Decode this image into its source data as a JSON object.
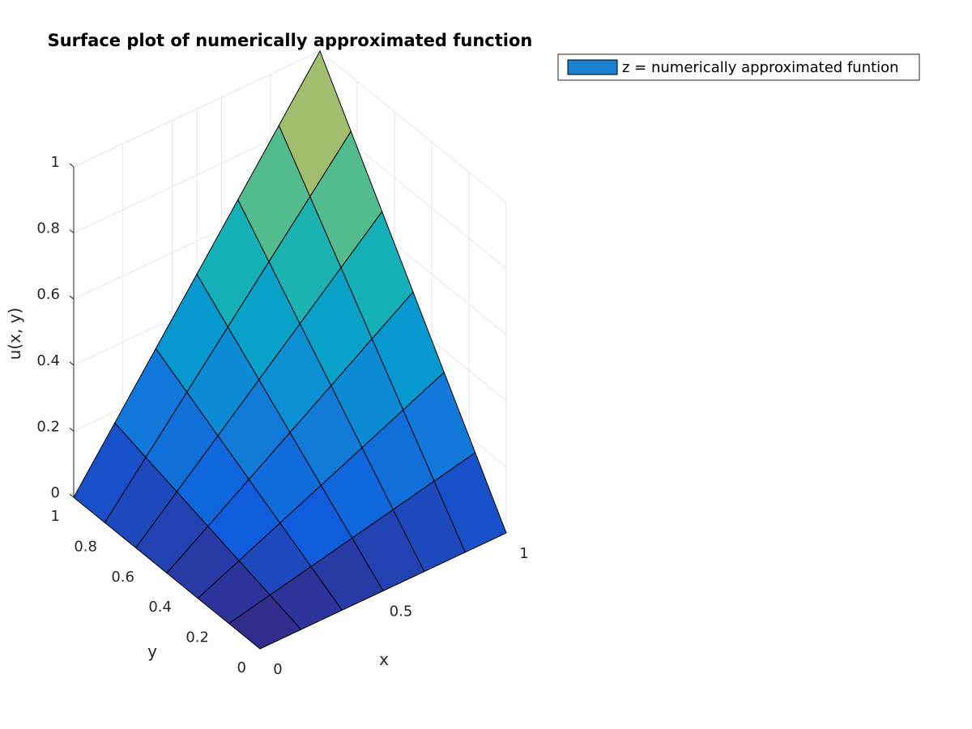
{
  "chart_data": {
    "type": "surface",
    "title": "Surface plot of numerically approximated function",
    "xlabel": "x",
    "ylabel": "y",
    "zlabel": "u(x, y)",
    "x": [
      0,
      0.1667,
      0.3333,
      0.5,
      0.6667,
      0.8333,
      1
    ],
    "y": [
      0,
      0.1667,
      0.3333,
      0.5,
      0.6667,
      0.8333,
      1
    ],
    "z": [
      [
        0,
        0,
        0,
        0,
        0,
        0,
        0
      ],
      [
        0,
        0.0278,
        0.0556,
        0.0833,
        0.1111,
        0.1389,
        0.1667
      ],
      [
        0,
        0.0556,
        0.1111,
        0.1667,
        0.2222,
        0.2778,
        0.3333
      ],
      [
        0,
        0.0833,
        0.1667,
        0.25,
        0.3333,
        0.4167,
        0.5
      ],
      [
        0,
        0.1111,
        0.2222,
        0.3333,
        0.4444,
        0.5556,
        0.6667
      ],
      [
        0,
        0.1389,
        0.2778,
        0.4167,
        0.5556,
        0.6944,
        0.8333
      ],
      [
        0,
        0.1667,
        0.3333,
        0.5,
        0.6667,
        0.8333,
        1
      ]
    ],
    "xlim": [
      0,
      1
    ],
    "ylim": [
      0,
      1
    ],
    "zlim": [
      0,
      1
    ],
    "xticks": [
      "0",
      "0.5",
      "1"
    ],
    "yticks": [
      "0",
      "0.2",
      "0.4",
      "0.6",
      "0.8",
      "1"
    ],
    "zticks": [
      "0",
      "0.2",
      "0.4",
      "0.6",
      "0.8",
      "1"
    ],
    "grid": true,
    "colormap": "parula",
    "legend": {
      "label": "z = numerically approximated funtion",
      "swatch_color": "#1a80d0",
      "location": "top-right"
    }
  }
}
